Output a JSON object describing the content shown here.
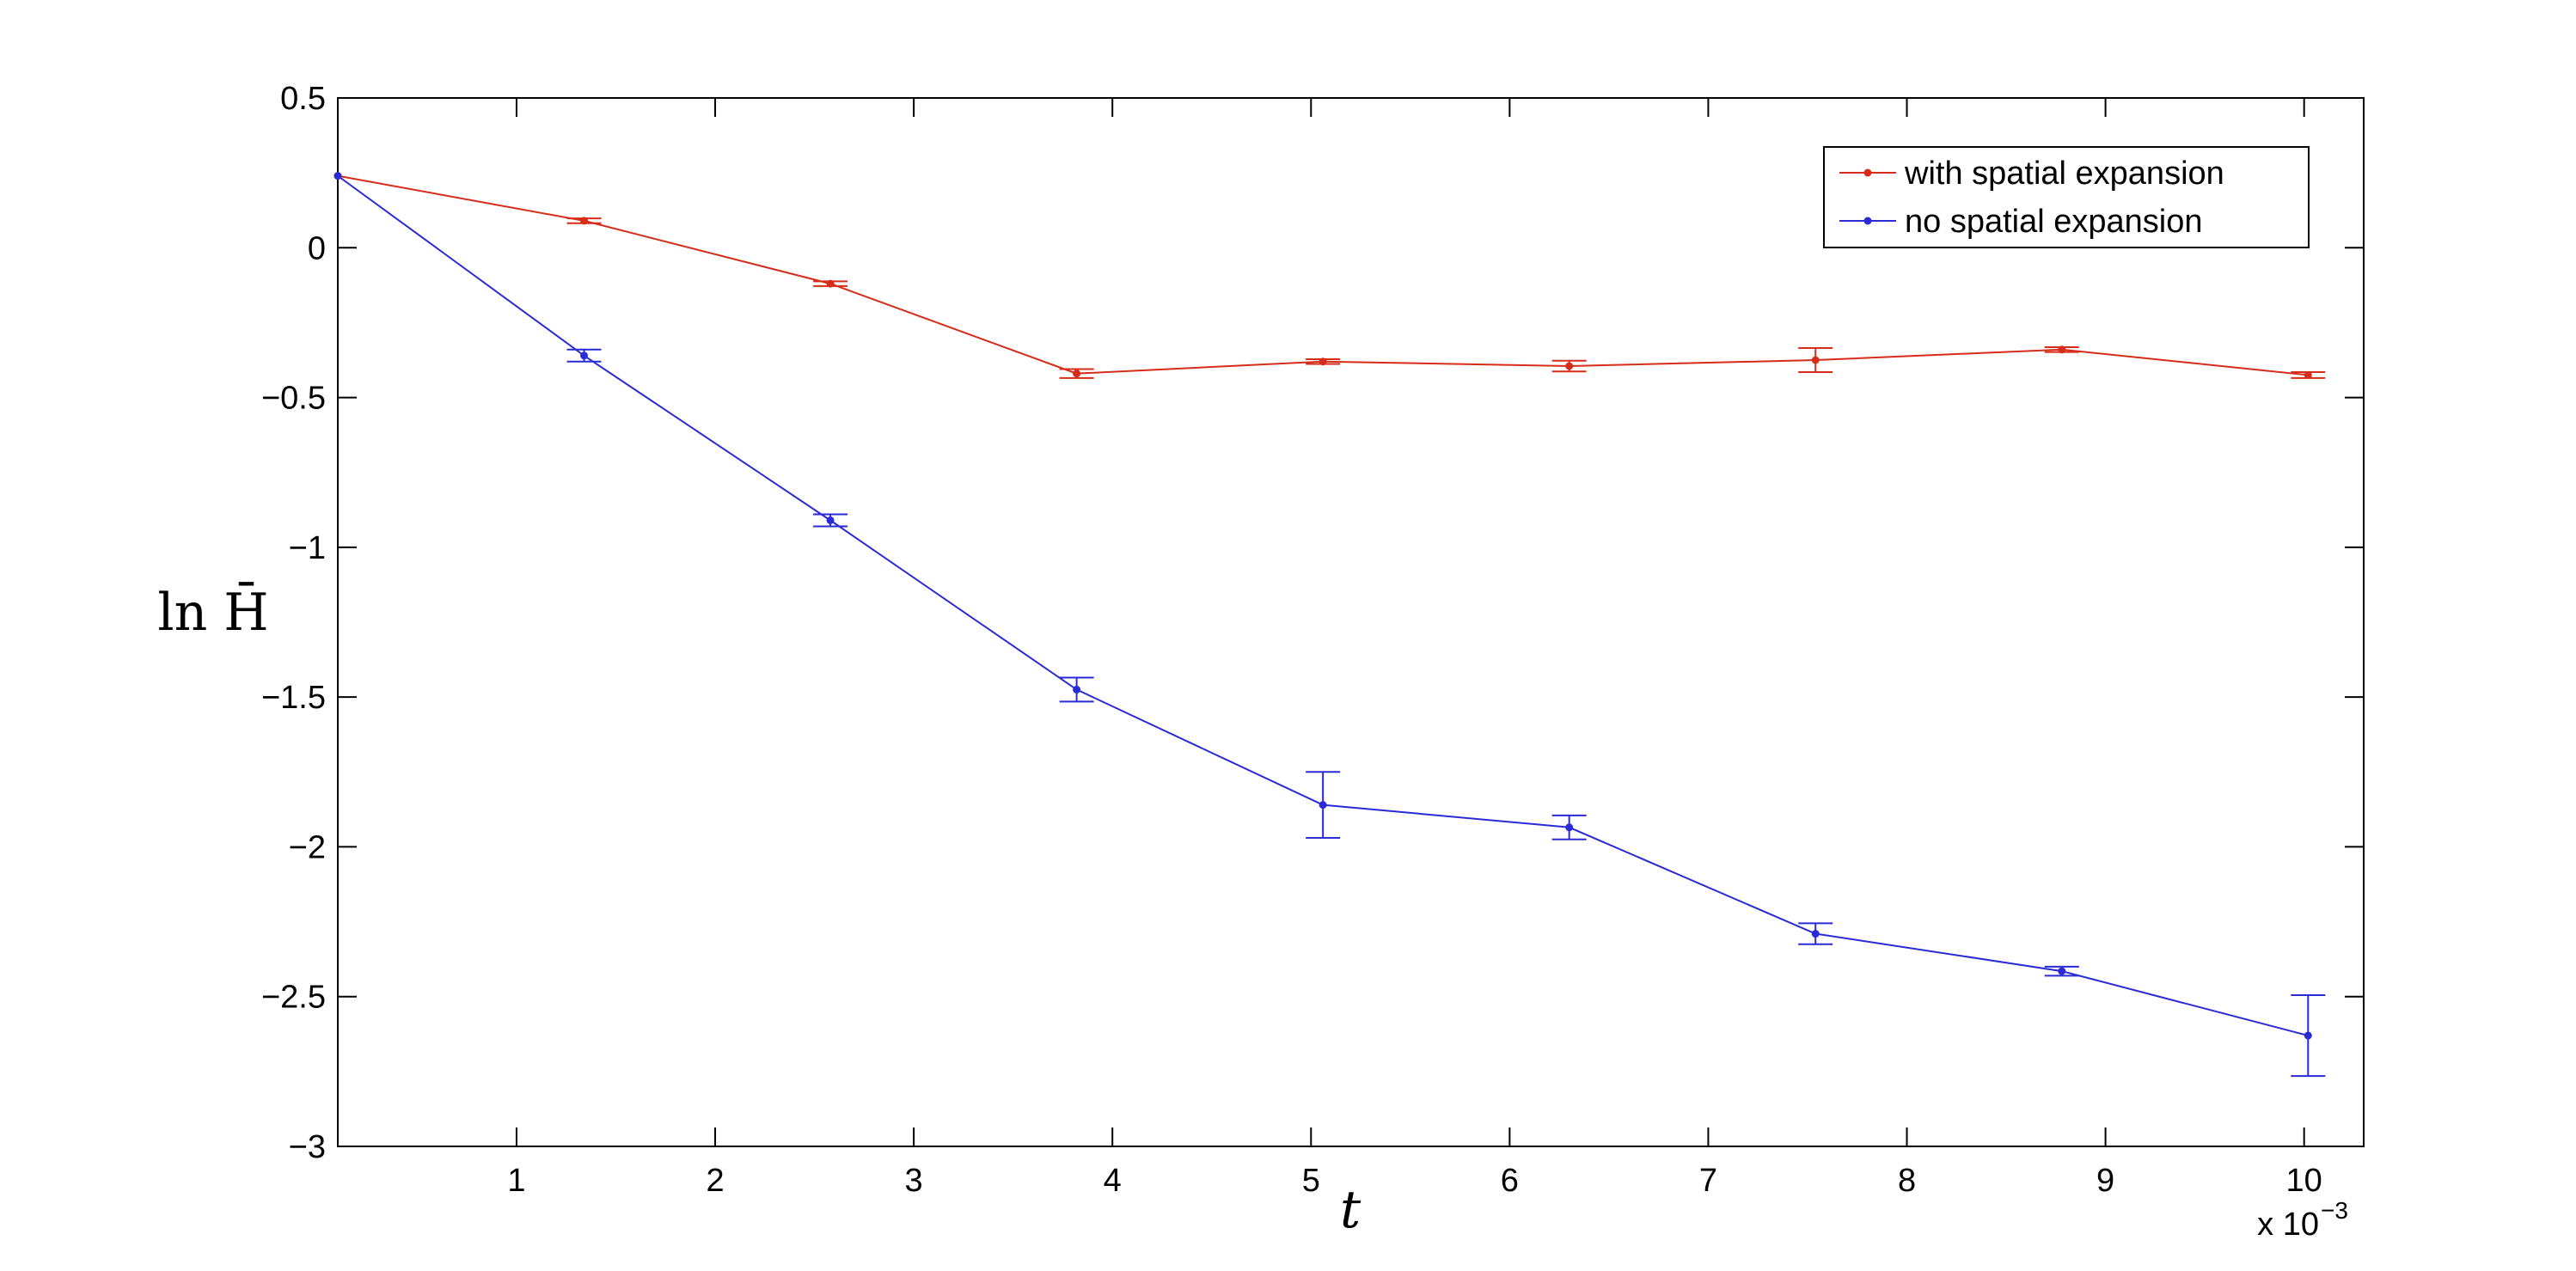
{
  "chart_data": {
    "type": "line",
    "xlabel": "t",
    "ylabel": "ln H̄",
    "x_scale_note": "x 10",
    "x_scale_exponent": "−3",
    "xlim": [
      0.1,
      10.3
    ],
    "ylim": [
      -3,
      0.5
    ],
    "x_ticks": [
      1,
      2,
      3,
      4,
      5,
      6,
      7,
      8,
      9,
      10
    ],
    "x_tick_labels": [
      "1",
      "2",
      "3",
      "4",
      "5",
      "6",
      "7",
      "8",
      "9",
      "10"
    ],
    "y_ticks": [
      0.5,
      0,
      -0.5,
      -1,
      -1.5,
      -2,
      -2.5,
      -3
    ],
    "y_tick_labels": [
      "0.5",
      "0",
      "−0.5",
      "−1",
      "−1.5",
      "−2",
      "−2.5",
      "−3"
    ],
    "legend_position": "top-right",
    "grid": false,
    "series": [
      {
        "name": "with spatial expansion",
        "color": "#d62c1a",
        "x": [
          0.1,
          1.34,
          2.58,
          3.82,
          5.06,
          6.3,
          7.54,
          8.78,
          10.02
        ],
        "y": [
          0.24,
          0.09,
          -0.12,
          -0.42,
          -0.38,
          -0.395,
          -0.375,
          -0.34,
          -0.425
        ],
        "err": [
          0.0,
          0.008,
          0.008,
          0.015,
          0.008,
          0.018,
          0.04,
          0.008,
          0.01
        ]
      },
      {
        "name": "no spatial expansion",
        "color": "#2a2ad6",
        "x": [
          0.1,
          1.34,
          2.58,
          3.82,
          5.06,
          6.3,
          7.54,
          8.78,
          10.02
        ],
        "y": [
          0.24,
          -0.36,
          -0.91,
          -1.475,
          -1.86,
          -1.935,
          -2.29,
          -2.415,
          -2.63
        ],
        "err": [
          0.0,
          0.02,
          0.02,
          0.04,
          0.11,
          0.04,
          0.035,
          0.015,
          0.135
        ]
      }
    ]
  }
}
